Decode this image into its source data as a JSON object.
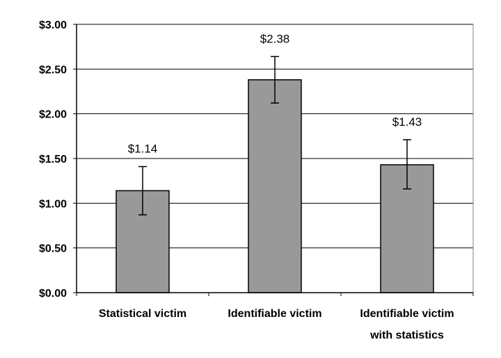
{
  "chart_data": {
    "type": "bar",
    "categories": [
      [
        "Statistical victim"
      ],
      [
        "Identifiable victim"
      ],
      [
        "Identifiable victim",
        "with statistics"
      ]
    ],
    "values": [
      1.14,
      2.38,
      1.43
    ],
    "data_labels": [
      "$1.14",
      "$2.38",
      "$1.43"
    ],
    "error_low": [
      0.87,
      2.12,
      1.16
    ],
    "error_high": [
      1.41,
      2.64,
      1.71
    ],
    "ylim": [
      0,
      3.0
    ],
    "yticks": [
      0,
      0.5,
      1.0,
      1.5,
      2.0,
      2.5,
      3.0
    ],
    "ytick_labels": [
      "$0.00",
      "$0.50",
      "$1.00",
      "$1.50",
      "$2.00",
      "$2.50",
      "$3.00"
    ],
    "title": "",
    "xlabel": "",
    "ylabel": "",
    "grid": true,
    "colors": {
      "bar_fill": "#999999",
      "bar_stroke": "#000000",
      "grid": "#000000",
      "plot_border": "#808080"
    }
  }
}
